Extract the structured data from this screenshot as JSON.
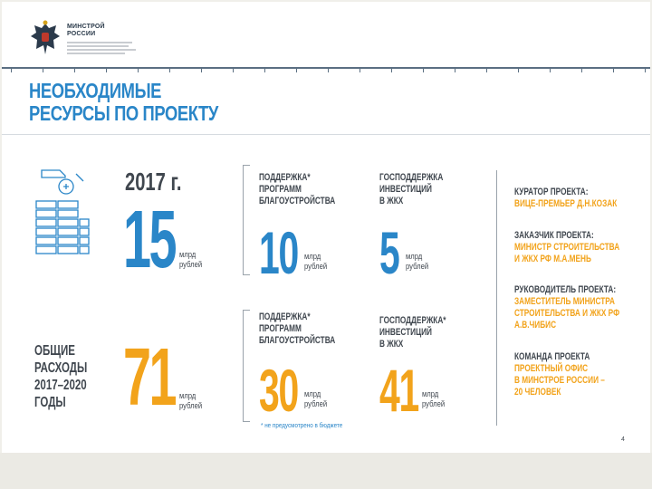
{
  "header": {
    "org_name_line1": "МИНСТРОЙ",
    "org_name_line2": "РОССИИ"
  },
  "title": {
    "line1": "НЕОБХОДИМЫЕ",
    "line2": "РЕСУРСЫ ПО ПРОЕКТУ"
  },
  "row_2017": {
    "year": "2017 г.",
    "total_value": "15",
    "total_unit_line1": "млрд",
    "total_unit_line2": "рублей",
    "support_label": [
      "ПОДДЕРЖКА*",
      "ПРОГРАММ",
      "БЛАГОУСТРОЙСТВА"
    ],
    "support_value": "10",
    "support_unit_line1": "млрд",
    "support_unit_line2": "рублей",
    "invest_label": [
      "ГОСПОДДЕРЖКА",
      "ИНВЕСТИЦИЙ",
      "В ЖКХ"
    ],
    "invest_value": "5",
    "invest_unit_line1": "млрд",
    "invest_unit_line2": "рублей"
  },
  "row_total": {
    "label": [
      "ОБЩИЕ",
      "РАСХОДЫ",
      "2017–2020",
      "ГОДЫ"
    ],
    "total_value": "71",
    "total_unit_line1": "млрд",
    "total_unit_line2": "рублей",
    "support_label": [
      "ПОДДЕРЖКА*",
      "ПРОГРАММ",
      "БЛАГОУСТРОЙСТВА"
    ],
    "support_value": "30",
    "support_unit_line1": "млрд",
    "support_unit_line2": "рублей",
    "invest_label": [
      "ГОСПОДДЕРЖКА*",
      "ИНВЕСТИЦИЙ",
      "В ЖКХ"
    ],
    "invest_value": "41",
    "invest_unit_line1": "млрд",
    "invest_unit_line2": "рублей"
  },
  "project_team": [
    {
      "title": "КУРАТОР ПРОЕКТА:",
      "value": [
        "ВИЦЕ-ПРЕМЬЕР Д.Н.КОЗАК"
      ]
    },
    {
      "title": "ЗАКАЗЧИК ПРОЕКТА:",
      "value": [
        "МИНИСТР СТРОИТЕЛЬСТВА",
        "И ЖКХ РФ М.А.МЕНЬ"
      ]
    },
    {
      "title": "РУКОВОДИТЕЛЬ ПРОЕКТА:",
      "value": [
        "ЗАМЕСТИТЕЛЬ МИНИСТРА",
        "СТРОИТЕЛЬСТВА И ЖКХ РФ",
        "А.В.ЧИБИС"
      ]
    },
    {
      "title": "КОМАНДА ПРОЕКТА",
      "value": [
        "ПРОЕКТНЫЙ ОФИС",
        "В МИНСТРОЕ РОССИИ –",
        "20 ЧЕЛОВЕК"
      ]
    }
  ],
  "footnote": "* не предусмотрено в бюджете",
  "page_number": "4",
  "colors": {
    "blue": "#2a86c8",
    "orange": "#f2a31b",
    "gray": "#40474f"
  }
}
